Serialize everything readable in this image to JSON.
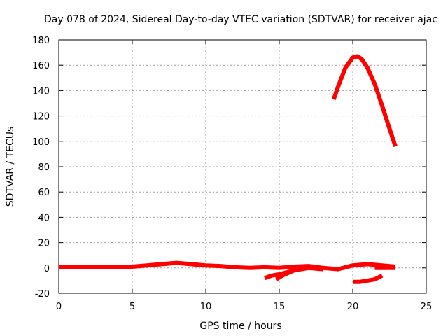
{
  "chart_data": {
    "type": "line",
    "title": "Day 078 of 2024, Sidereal Day-to-day VTEC variation (SDTVAR) for receiver ajac",
    "xlabel": "GPS time / hours",
    "ylabel": "SDTVAR / TECUs",
    "xlim": [
      0,
      25
    ],
    "ylim": [
      -20,
      180
    ],
    "xticks": [
      0,
      5,
      10,
      15,
      20,
      25
    ],
    "yticks": [
      -20,
      0,
      20,
      40,
      60,
      80,
      100,
      120,
      140,
      160,
      180
    ],
    "grid": true,
    "series_color": "#ff0000",
    "series": [
      {
        "x": [
          0,
          1,
          2,
          3,
          4,
          5,
          6,
          7,
          8,
          9,
          10,
          11,
          12,
          13,
          14,
          15,
          16,
          17,
          18,
          19,
          20,
          21,
          22,
          22.9
        ],
        "y": [
          1,
          0.5,
          0.5,
          0.5,
          1,
          1,
          2,
          3,
          4,
          3,
          2,
          1.5,
          0.5,
          0,
          0.5,
          0,
          1,
          1.5,
          0,
          -1,
          2,
          3,
          2,
          1
        ]
      },
      {
        "x": [
          14,
          14.5,
          15,
          15.5,
          16,
          16.5,
          17,
          17.5,
          18
        ],
        "y": [
          -8,
          -6,
          -5,
          -3.5,
          -2,
          -1,
          0,
          -0.5,
          -1
        ]
      },
      {
        "x": [
          14.8,
          15.2,
          15.6,
          16
        ],
        "y": [
          -9,
          -6,
          -4,
          -2
        ]
      },
      {
        "x": [
          20,
          20.5,
          21,
          21.5,
          22
        ],
        "y": [
          -11,
          -11,
          -10,
          -9,
          -6
        ]
      },
      {
        "x": [
          21.5,
          22,
          22.5,
          22.9
        ],
        "y": [
          0,
          0,
          0,
          0
        ]
      },
      {
        "x": [
          18.7,
          19,
          19.5,
          20,
          20.3,
          20.6,
          21,
          21.5,
          22,
          22.5,
          22.9
        ],
        "y": [
          133,
          143,
          158,
          166,
          167,
          165,
          158,
          145,
          128,
          110,
          96
        ]
      }
    ]
  }
}
